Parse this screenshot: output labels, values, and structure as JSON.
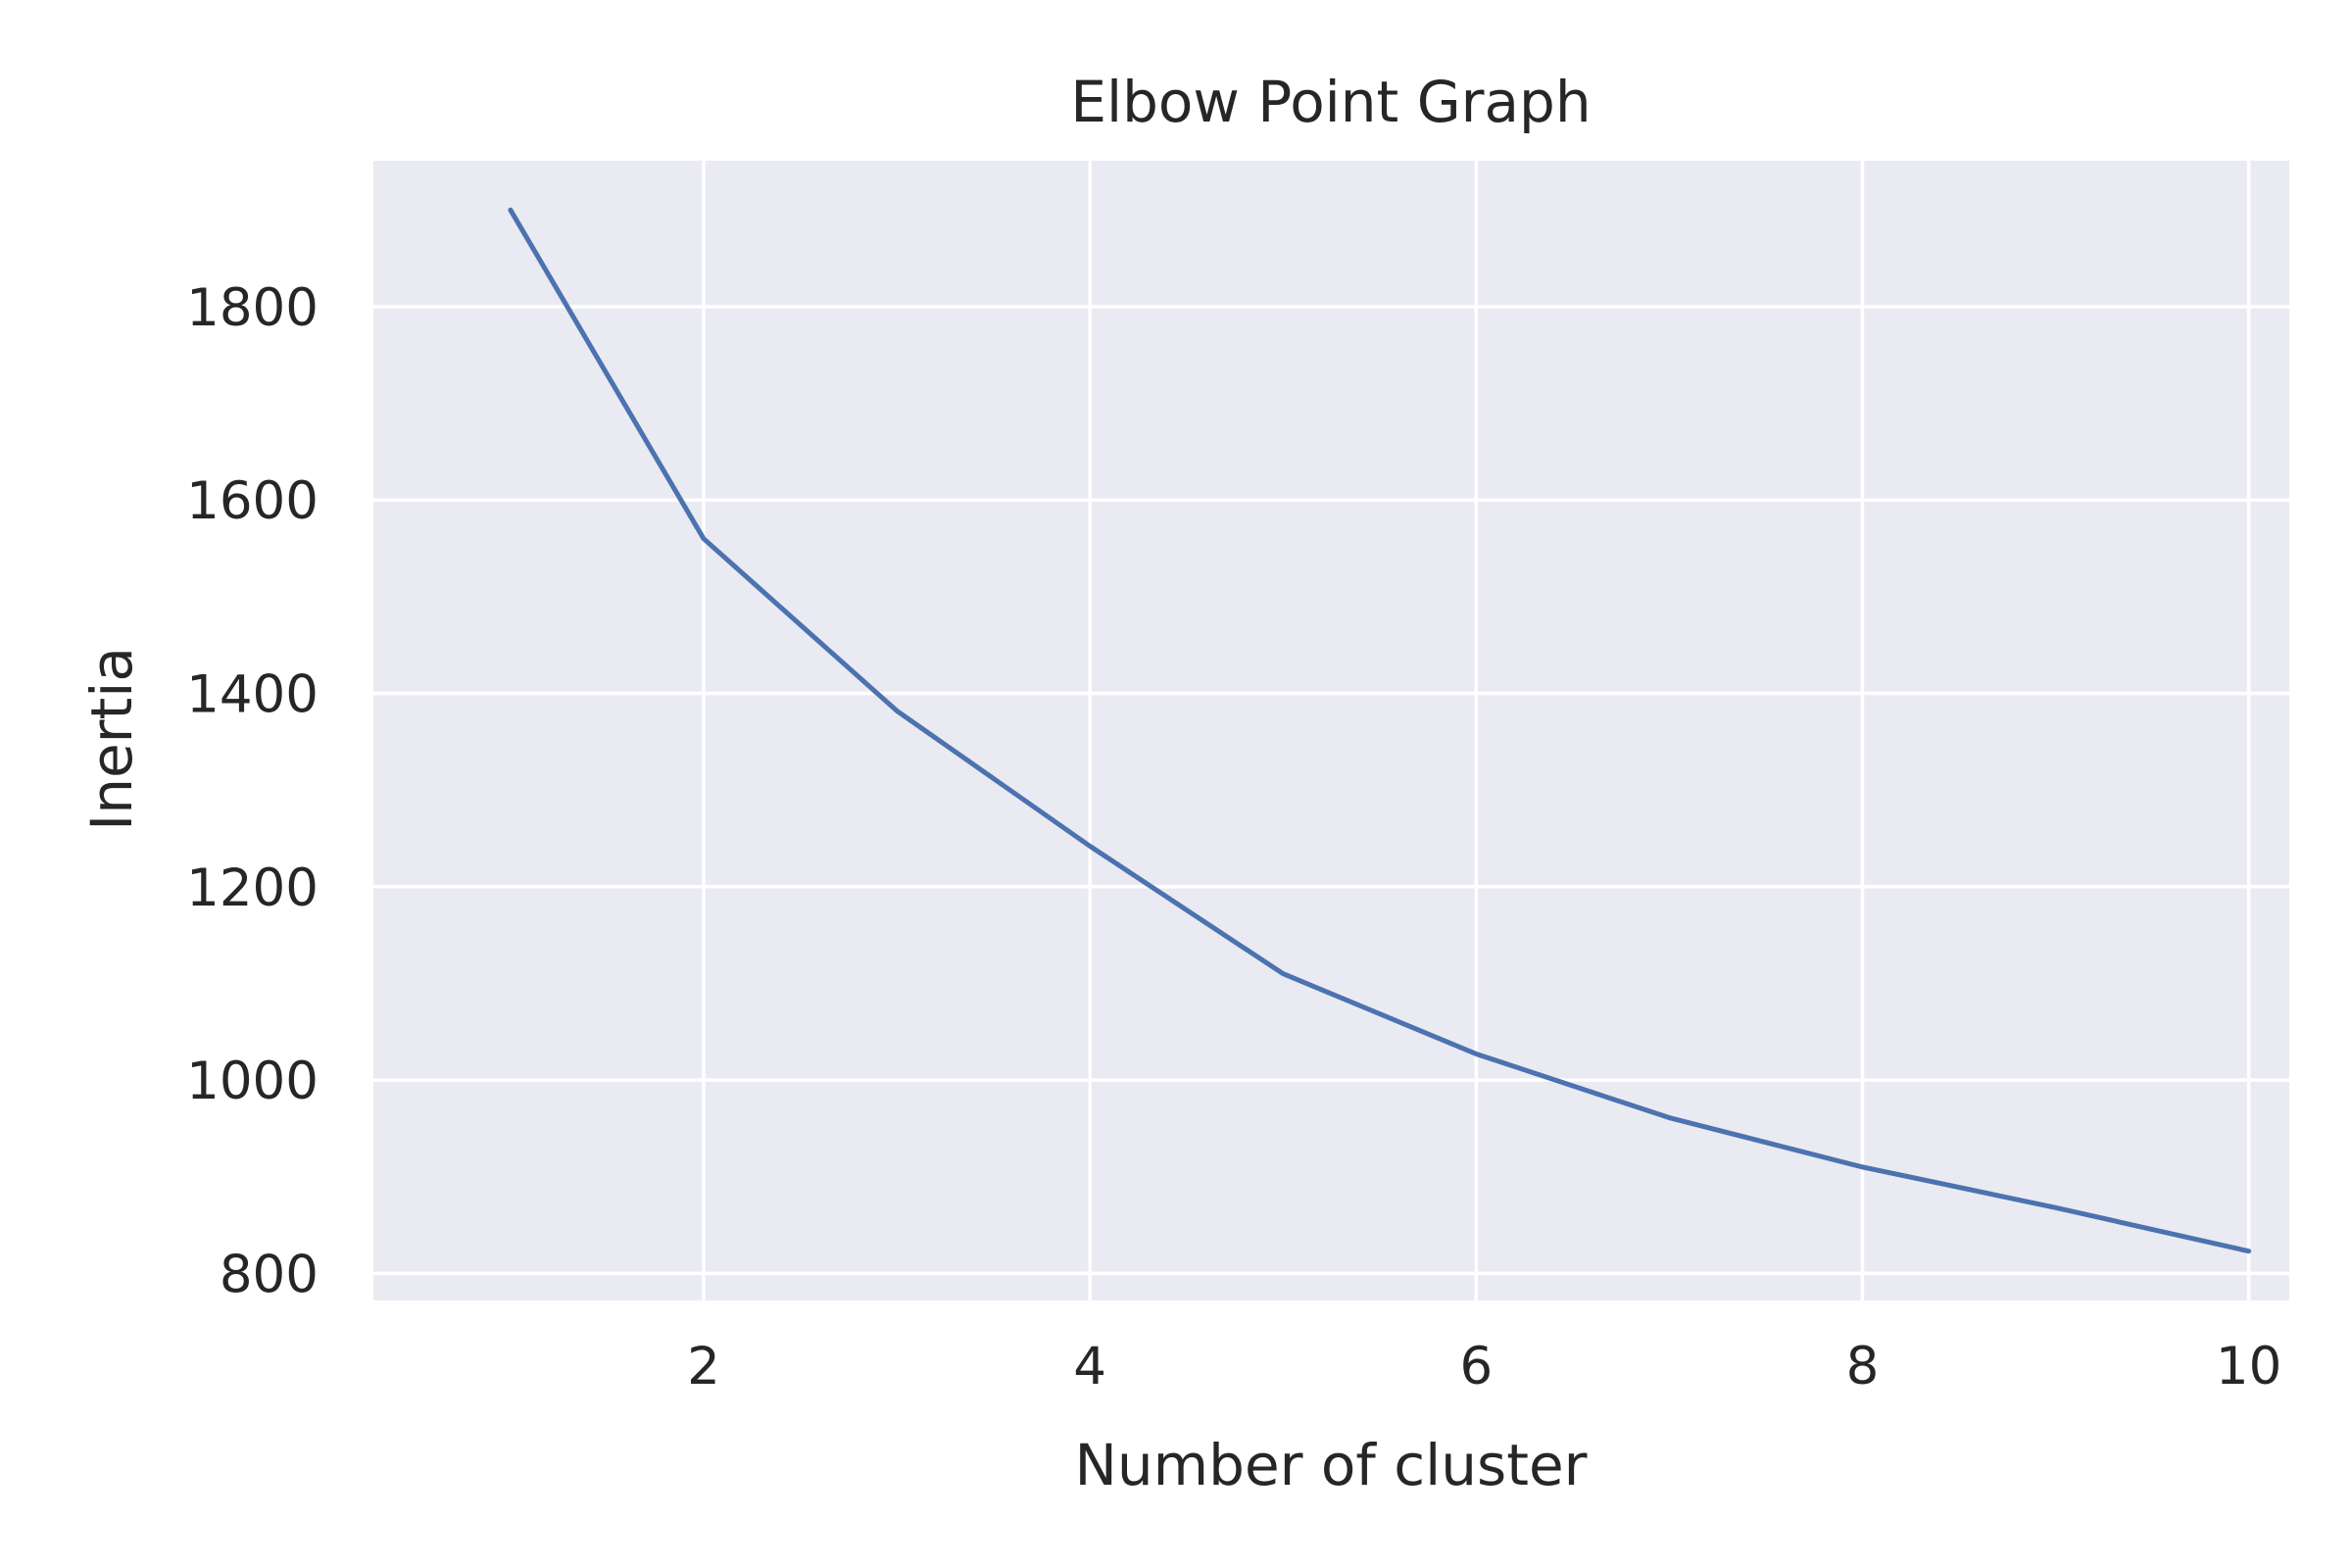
{
  "chart_data": {
    "type": "line",
    "title": "Elbow Point Graph",
    "xlabel": "Number of cluster",
    "ylabel": "Inertia",
    "x": [
      1,
      2,
      3,
      4,
      5,
      6,
      7,
      8,
      9,
      10
    ],
    "series": [
      {
        "values": [
          1900,
          1560,
          1382,
          1242,
          1110,
          1027,
          961,
          910,
          868,
          823
        ]
      }
    ],
    "xlim": [
      0.29,
      10.21
    ],
    "ylim": [
      772,
      1951
    ],
    "xticks": [
      2,
      4,
      6,
      8,
      10
    ],
    "yticks": [
      800,
      1000,
      1200,
      1400,
      1600,
      1800
    ],
    "grid": true,
    "colors": {
      "plot_background": "#eaeaf2",
      "grid": "#ffffff",
      "line": "#4c72b0",
      "text": "#262626"
    }
  }
}
